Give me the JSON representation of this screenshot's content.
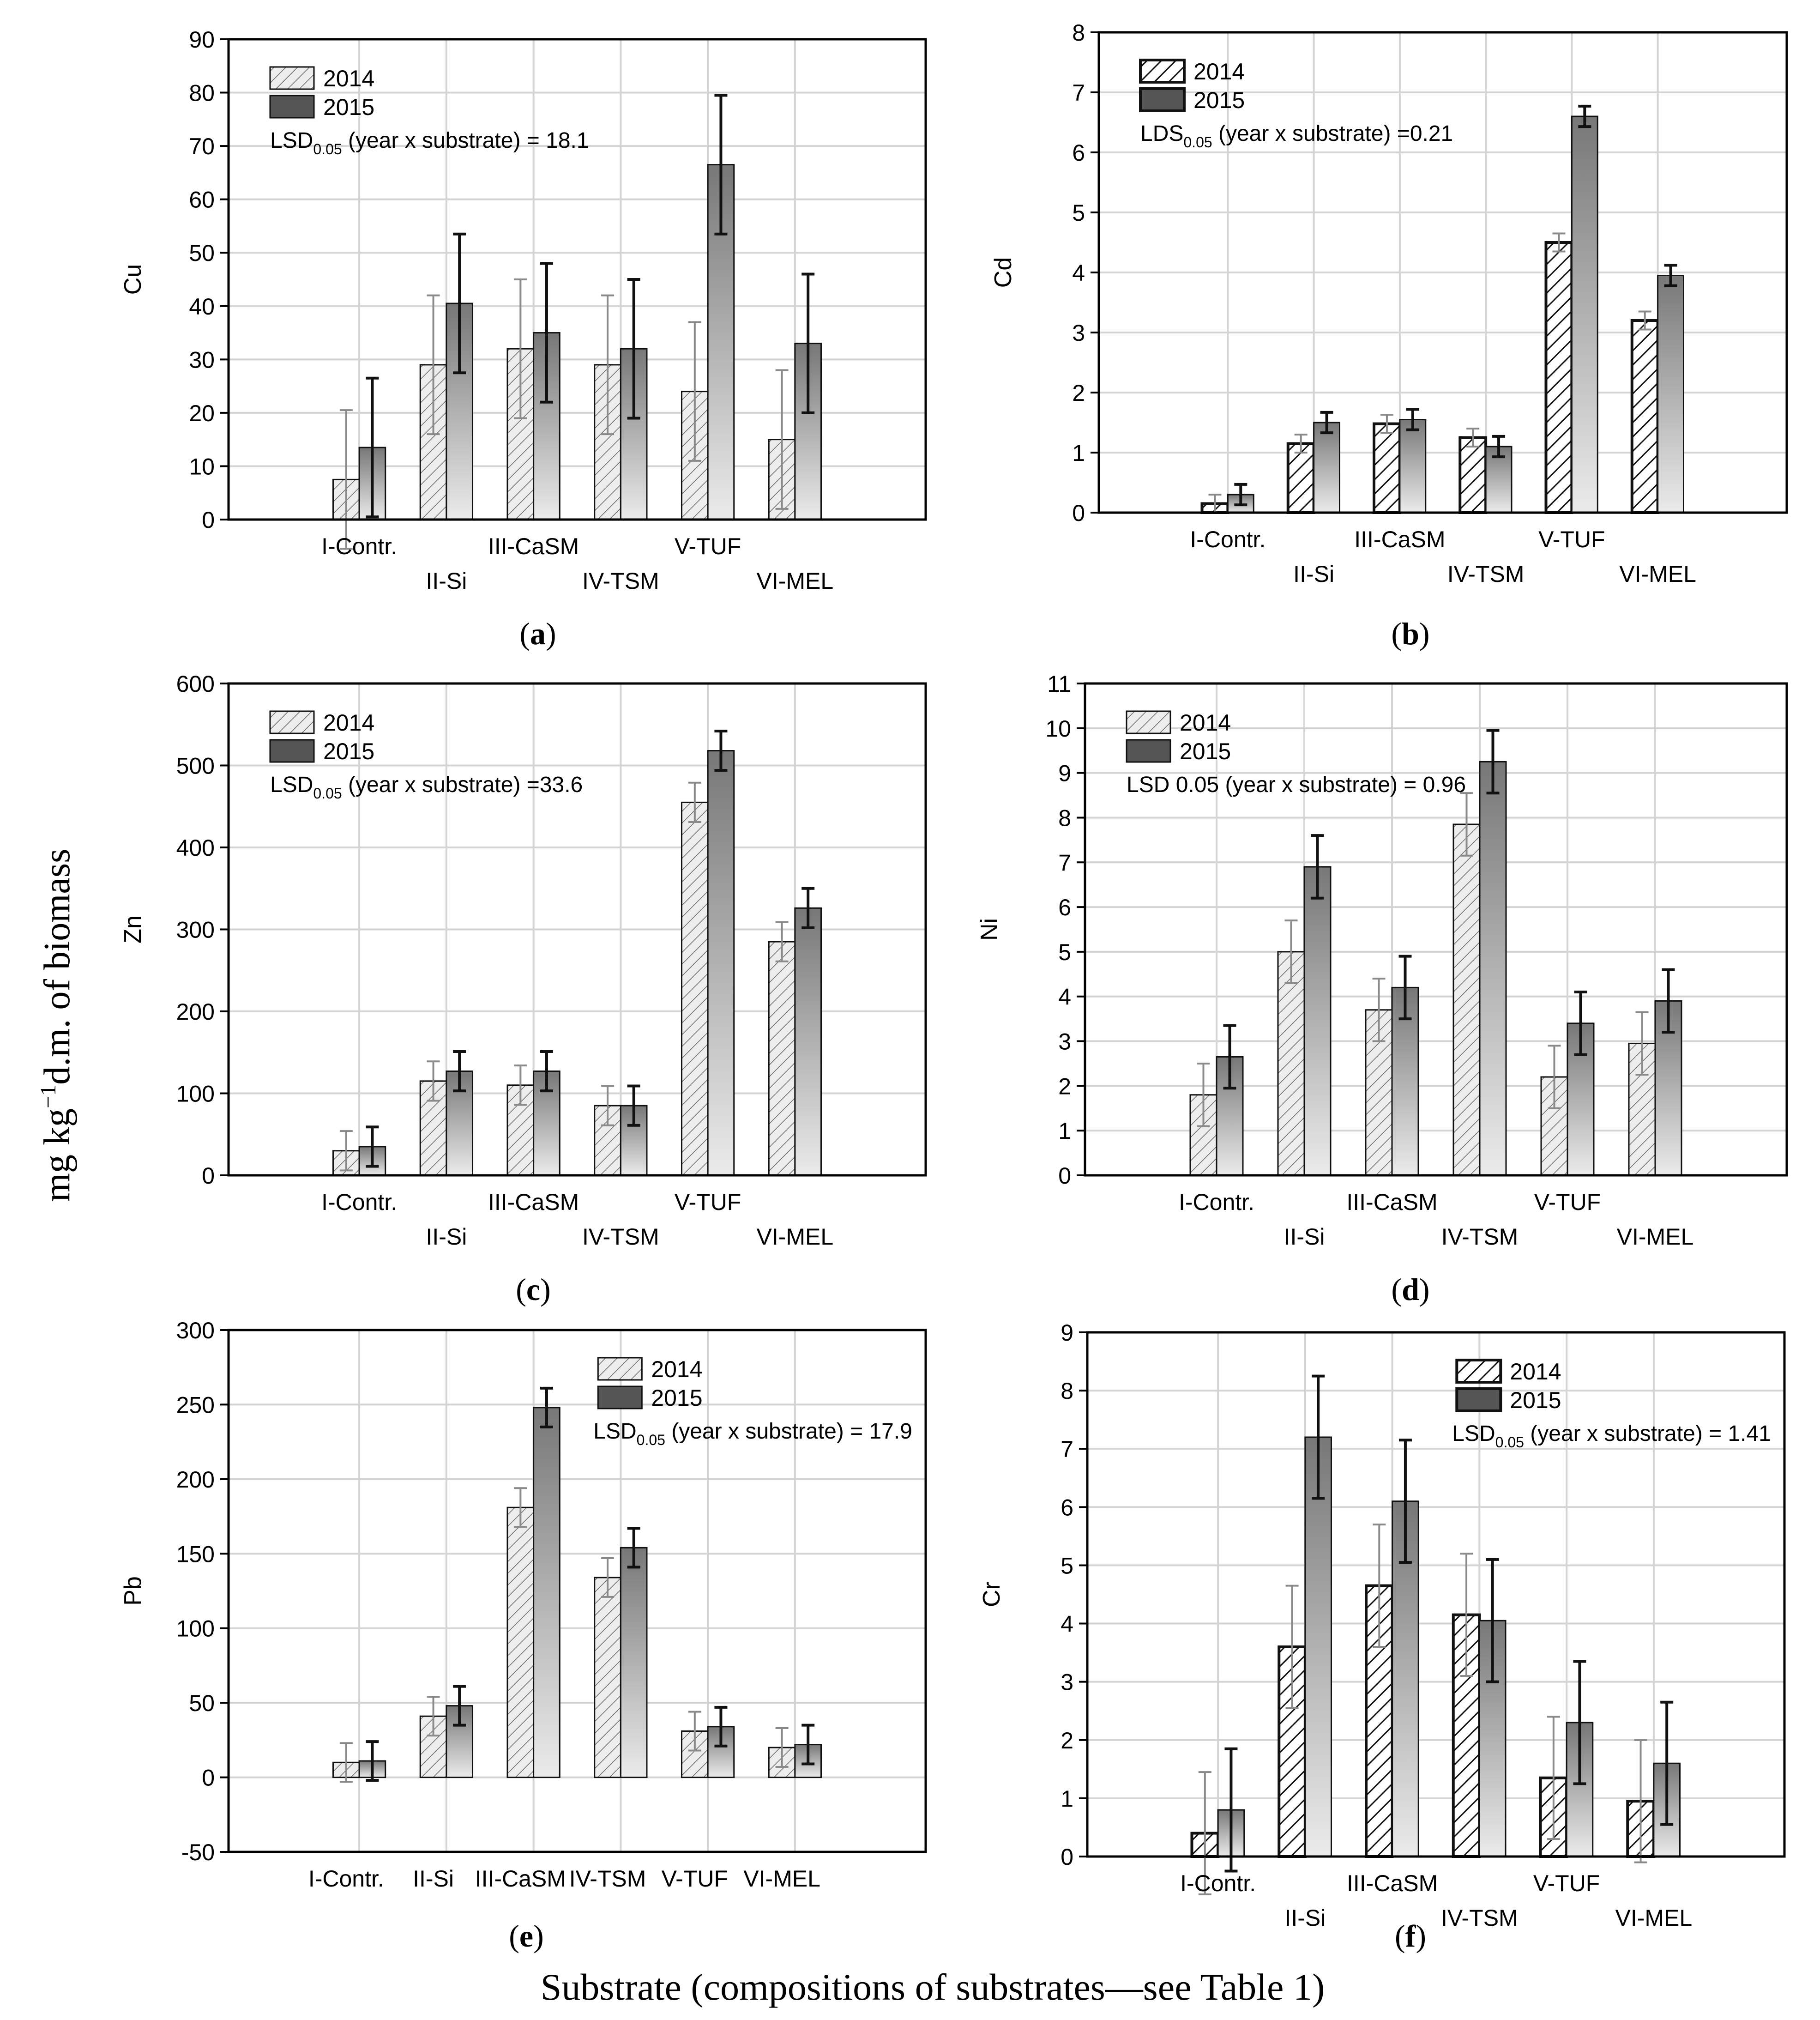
{
  "figure": {
    "y_axis_label_parts": [
      "mg kg",
      "−1",
      "d.m. of biomass"
    ],
    "x_axis_label": "Substrate (compositions of substrates—see Table 1)",
    "legend_years": [
      "2014",
      "2015"
    ],
    "colors": {
      "bar_2014": "#e6e6e6",
      "bar_2015_top": "#777777",
      "bar_2015_bottom": "#e9e9e9",
      "legend_2015": "#555555",
      "grid": "#d4d4d4",
      "axis": "#000000"
    }
  },
  "chart_data": [
    {
      "id": "a",
      "panel_label": "a",
      "type": "bar",
      "ylabel": "Cu",
      "categories": [
        "I-Contr.",
        "II-Si",
        "III-CaSM",
        "IV-TSM",
        "V-TUF",
        "VI-MEL"
      ],
      "ylim": [
        0,
        90
      ],
      "yticks": [
        0,
        10,
        20,
        30,
        40,
        50,
        60,
        70,
        80,
        90
      ],
      "series": [
        {
          "name": "2014",
          "values": [
            7.5,
            29,
            32,
            29,
            24,
            15
          ],
          "errors": [
            13,
            13,
            13,
            13,
            13,
            13
          ]
        },
        {
          "name": "2015",
          "values": [
            13.5,
            40.5,
            35,
            32,
            66.5,
            33
          ],
          "errors": [
            13,
            13,
            13,
            13,
            13,
            13
          ]
        }
      ],
      "lsd": {
        "prefix": "LSD",
        "sub": "0.05",
        "suffix": " (year x substrate) = 18.1"
      },
      "legend_position": "top-left",
      "label_layout": "stagger",
      "hatch": "fine",
      "grid": true
    },
    {
      "id": "b",
      "panel_label": "b",
      "type": "bar",
      "ylabel": "Cd",
      "categories": [
        "I-Contr.",
        "II-Si",
        "III-CaSM",
        "IV-TSM",
        "V-TUF",
        "VI-MEL"
      ],
      "ylim": [
        0,
        8
      ],
      "yticks": [
        0,
        1,
        2,
        3,
        4,
        5,
        6,
        7,
        8
      ],
      "series": [
        {
          "name": "2014",
          "values": [
            0.15,
            1.15,
            1.48,
            1.25,
            4.5,
            3.2
          ],
          "errors": [
            0.15,
            0.15,
            0.15,
            0.15,
            0.15,
            0.15
          ]
        },
        {
          "name": "2015",
          "values": [
            0.3,
            1.5,
            1.55,
            1.1,
            6.6,
            3.95
          ],
          "errors": [
            0.17,
            0.17,
            0.17,
            0.17,
            0.17,
            0.17
          ]
        }
      ],
      "lsd": {
        "prefix": "LDS",
        "sub": "0.05",
        "suffix": " (year x substrate) =0.21"
      },
      "legend_position": "top-left",
      "label_layout": "stagger",
      "hatch": "bold",
      "grid": true
    },
    {
      "id": "c",
      "panel_label": "c",
      "type": "bar",
      "ylabel": "Zn",
      "categories": [
        "I-Contr.",
        "II-Si",
        "III-CaSM",
        "IV-TSM",
        "V-TUF",
        "VI-MEL"
      ],
      "ylim": [
        0,
        600
      ],
      "yticks": [
        0,
        100,
        200,
        300,
        400,
        500,
        600
      ],
      "series": [
        {
          "name": "2014",
          "values": [
            30,
            115,
            110,
            85,
            455,
            285
          ],
          "errors": [
            24,
            24,
            24,
            24,
            24,
            24
          ]
        },
        {
          "name": "2015",
          "values": [
            35,
            127,
            127,
            85,
            518,
            326
          ],
          "errors": [
            24,
            24,
            24,
            24,
            24,
            24
          ]
        }
      ],
      "lsd": {
        "prefix": "LSD",
        "sub": "0.05",
        "suffix": " (year x substrate) =33.6"
      },
      "legend_position": "top-left",
      "label_layout": "stagger",
      "hatch": "fine",
      "grid": true
    },
    {
      "id": "d",
      "panel_label": "d",
      "type": "bar",
      "ylabel": "Ni",
      "categories": [
        "I-Contr.",
        "II-Si",
        "III-CaSM",
        "IV-TSM",
        "V-TUF",
        "VI-MEL"
      ],
      "ylim": [
        0,
        11
      ],
      "yticks": [
        0,
        1,
        2,
        3,
        4,
        5,
        6,
        7,
        8,
        9,
        10,
        11
      ],
      "series": [
        {
          "name": "2014",
          "values": [
            1.8,
            5.0,
            3.7,
            7.85,
            2.2,
            2.95
          ],
          "errors": [
            0.7,
            0.7,
            0.7,
            0.7,
            0.7,
            0.7
          ]
        },
        {
          "name": "2015",
          "values": [
            2.65,
            6.9,
            4.2,
            9.25,
            3.4,
            3.9
          ],
          "errors": [
            0.7,
            0.7,
            0.7,
            0.7,
            0.7,
            0.7
          ]
        }
      ],
      "lsd": {
        "prefix": "LSD 0.05",
        "sub": "",
        "suffix": " (year x substrate) = 0.96"
      },
      "legend_position": "top-left",
      "label_layout": "stagger",
      "hatch": "fine",
      "grid": true
    },
    {
      "id": "e",
      "panel_label": "e",
      "type": "bar",
      "ylabel": "Pb",
      "categories": [
        "I-Contr.",
        "II-Si",
        "III-CaSM",
        "IV-TSM",
        "V-TUF",
        "VI-MEL"
      ],
      "ylim": [
        -50,
        300
      ],
      "yticks": [
        -50,
        0,
        50,
        100,
        150,
        200,
        250,
        300
      ],
      "series": [
        {
          "name": "2014",
          "values": [
            10,
            41,
            181,
            134,
            31,
            20
          ],
          "errors": [
            13,
            13,
            13,
            13,
            13,
            13
          ]
        },
        {
          "name": "2015",
          "values": [
            11,
            48,
            248,
            154,
            34,
            22
          ],
          "errors": [
            13,
            13,
            13,
            13,
            13,
            13
          ]
        }
      ],
      "lsd": {
        "prefix": "LSD",
        "sub": "0.05",
        "suffix": " (year x substrate) = 17.9"
      },
      "legend_position": "top-right",
      "label_layout": "single",
      "hatch": "fine",
      "grid": true
    },
    {
      "id": "f",
      "panel_label": "f",
      "type": "bar",
      "ylabel": "Cr",
      "categories": [
        "I-Contr.",
        "II-Si",
        "III-CaSM",
        "IV-TSM",
        "V-TUF",
        "VI-MEL"
      ],
      "ylim": [
        0,
        9
      ],
      "yticks": [
        0,
        1,
        2,
        3,
        4,
        5,
        6,
        7,
        8,
        9
      ],
      "series": [
        {
          "name": "2014",
          "values": [
            0.4,
            3.6,
            4.65,
            4.15,
            1.35,
            0.95
          ],
          "errors": [
            1.05,
            1.05,
            1.05,
            1.05,
            1.05,
            1.05
          ]
        },
        {
          "name": "2015",
          "values": [
            0.8,
            7.2,
            6.1,
            4.05,
            2.3,
            1.6
          ],
          "errors": [
            1.05,
            1.05,
            1.05,
            1.05,
            1.05,
            1.05
          ]
        }
      ],
      "lsd": {
        "prefix": "LSD",
        "sub": "0.05",
        "suffix": " (year x substrate) = 1.41"
      },
      "legend_position": "top-right",
      "label_layout": "stagger",
      "hatch": "bold",
      "grid": true
    }
  ]
}
